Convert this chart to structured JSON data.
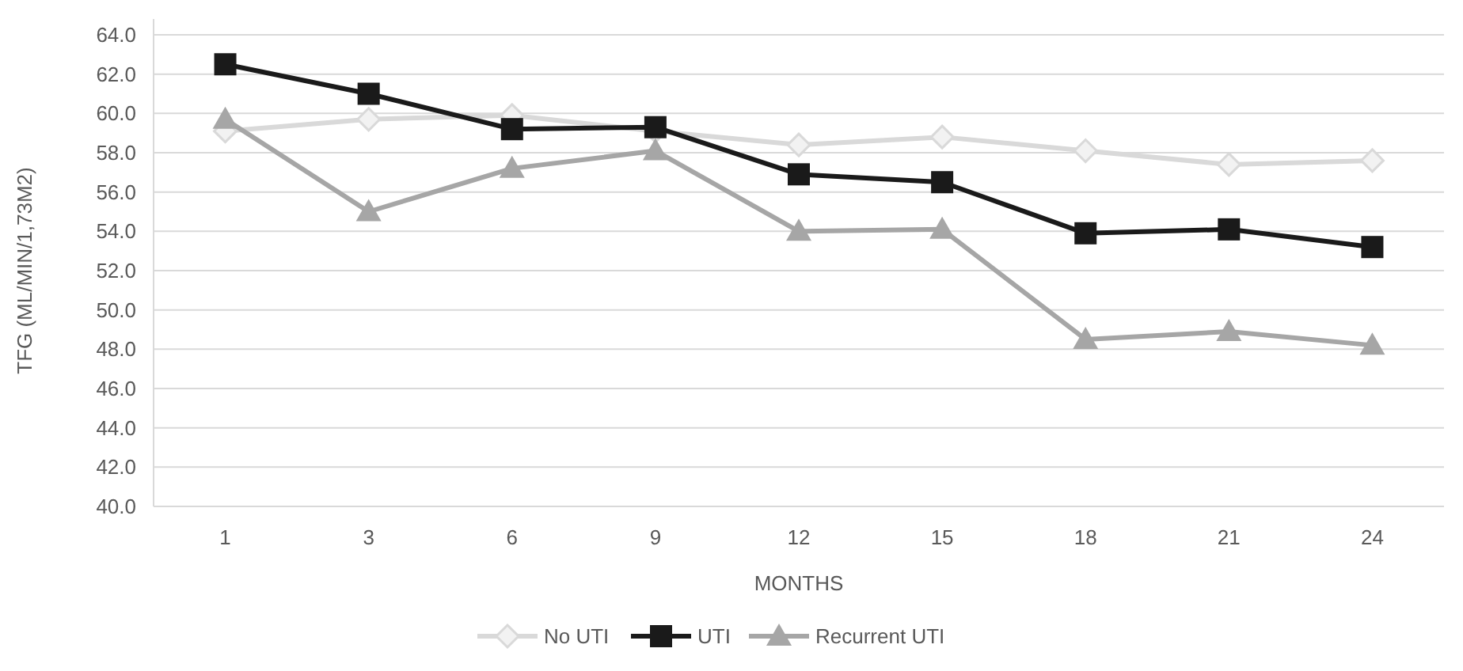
{
  "chart_data": {
    "type": "line",
    "xlabel": "MONTHS",
    "ylabel": "TFG (ML/MIN/1,73M2)",
    "categories": [
      "1",
      "3",
      "6",
      "9",
      "12",
      "15",
      "18",
      "21",
      "24"
    ],
    "series": [
      {
        "name": "No UTI",
        "color": "#d9d9d9",
        "marker": "diamond",
        "values": [
          59.1,
          59.7,
          59.9,
          59.1,
          58.4,
          58.8,
          58.1,
          57.4,
          57.6
        ]
      },
      {
        "name": "UTI",
        "color": "#1a1a1a",
        "marker": "square",
        "values": [
          62.5,
          61.0,
          59.2,
          59.3,
          56.9,
          56.5,
          53.9,
          54.1,
          53.2
        ]
      },
      {
        "name": "Recurrent UTI",
        "color": "#a6a6a6",
        "marker": "triangle",
        "values": [
          59.7,
          55.0,
          57.2,
          58.1,
          54.0,
          54.1,
          48.5,
          48.9,
          48.2
        ]
      }
    ],
    "ylim": [
      40,
      64
    ],
    "yticks": [
      {
        "value": 40,
        "label": "40.0"
      },
      {
        "value": 42,
        "label": "42.0"
      },
      {
        "value": 44,
        "label": "44.0"
      },
      {
        "value": 46,
        "label": "46.0"
      },
      {
        "value": 48,
        "label": "48.0"
      },
      {
        "value": 50,
        "label": "50.0"
      },
      {
        "value": 52,
        "label": "52.0"
      },
      {
        "value": 54,
        "label": "54.0"
      },
      {
        "value": 56,
        "label": "56.0"
      },
      {
        "value": 58,
        "label": "58.0"
      },
      {
        "value": 60,
        "label": "60.0"
      },
      {
        "value": 62,
        "label": "62.0"
      },
      {
        "value": 64,
        "label": "64.0"
      }
    ],
    "grid": "y",
    "legend": "bottom"
  }
}
